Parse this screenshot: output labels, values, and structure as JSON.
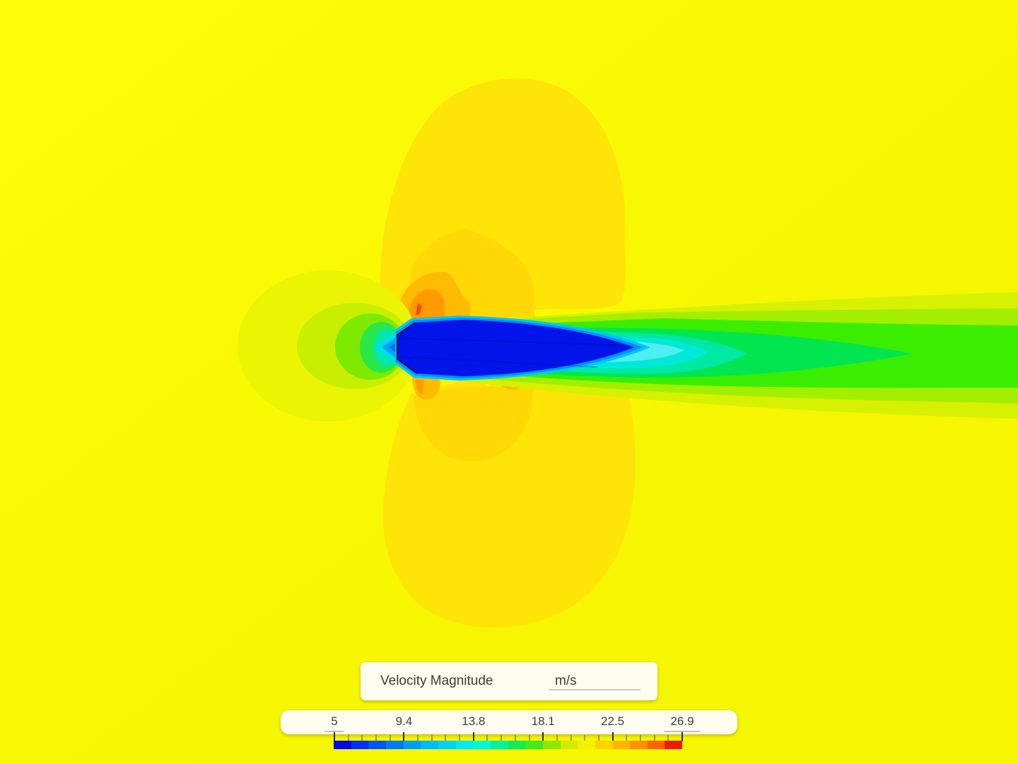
{
  "legend": {
    "field_name": "Velocity Magnitude",
    "unit": "m/s",
    "scale_labels": [
      "5",
      "9.4",
      "13.8",
      "18.1",
      "22.5",
      "26.9"
    ],
    "min_value": "5",
    "max_value": "26.9"
  },
  "colorbar": {
    "range_min": 5,
    "range_max": 26.9,
    "minor_ticks_per_interval": 4,
    "segments": [
      "#0009e8",
      "#0030fe",
      "#0055ff",
      "#007aff",
      "#009dff",
      "#00baff",
      "#00d2ff",
      "#00eaff",
      "#00f8dc",
      "#00f2a0",
      "#10ec5c",
      "#42e91e",
      "#8fe800",
      "#d2ec00",
      "#f2ef00",
      "#ffd200",
      "#ffb400",
      "#ff9200",
      "#ff6200",
      "#f01a00"
    ]
  },
  "field_colors": {
    "background": "#f6f600",
    "background_light": "#fffd0a",
    "dome_gold": "#ffe408",
    "gold_inner": "#ffd806",
    "orange": "#ffbb02",
    "orange_deep": "#ff9a00",
    "red_spot": "#fc4a10",
    "ring_pale": "#eaf403",
    "ring_yellow_green": "#c8ef00",
    "ring_green": "#7dea00",
    "ring_spring": "#2ae748",
    "ring_mint": "#00e9a6",
    "wedge_cyan": "#00dcec",
    "wedge_blue": "#00a4f6",
    "wedge_deep_blue": "#0560ff",
    "wake_pale": "#d6f101",
    "wake_yellow_green": "#a4ee00",
    "wake_green": "#3bee00",
    "wake_spring": "#00e550",
    "wake_mint": "#00e9a2",
    "wake_cyan": "#00e9d8",
    "wake_cyan_light": "#4feef2",
    "fringe_cyan": "#00c8f4",
    "fringe_blue": "#0092fb",
    "body_blue": "#0114e9",
    "body_chord": "#000a96",
    "body_outline": "#0d0d26"
  }
}
